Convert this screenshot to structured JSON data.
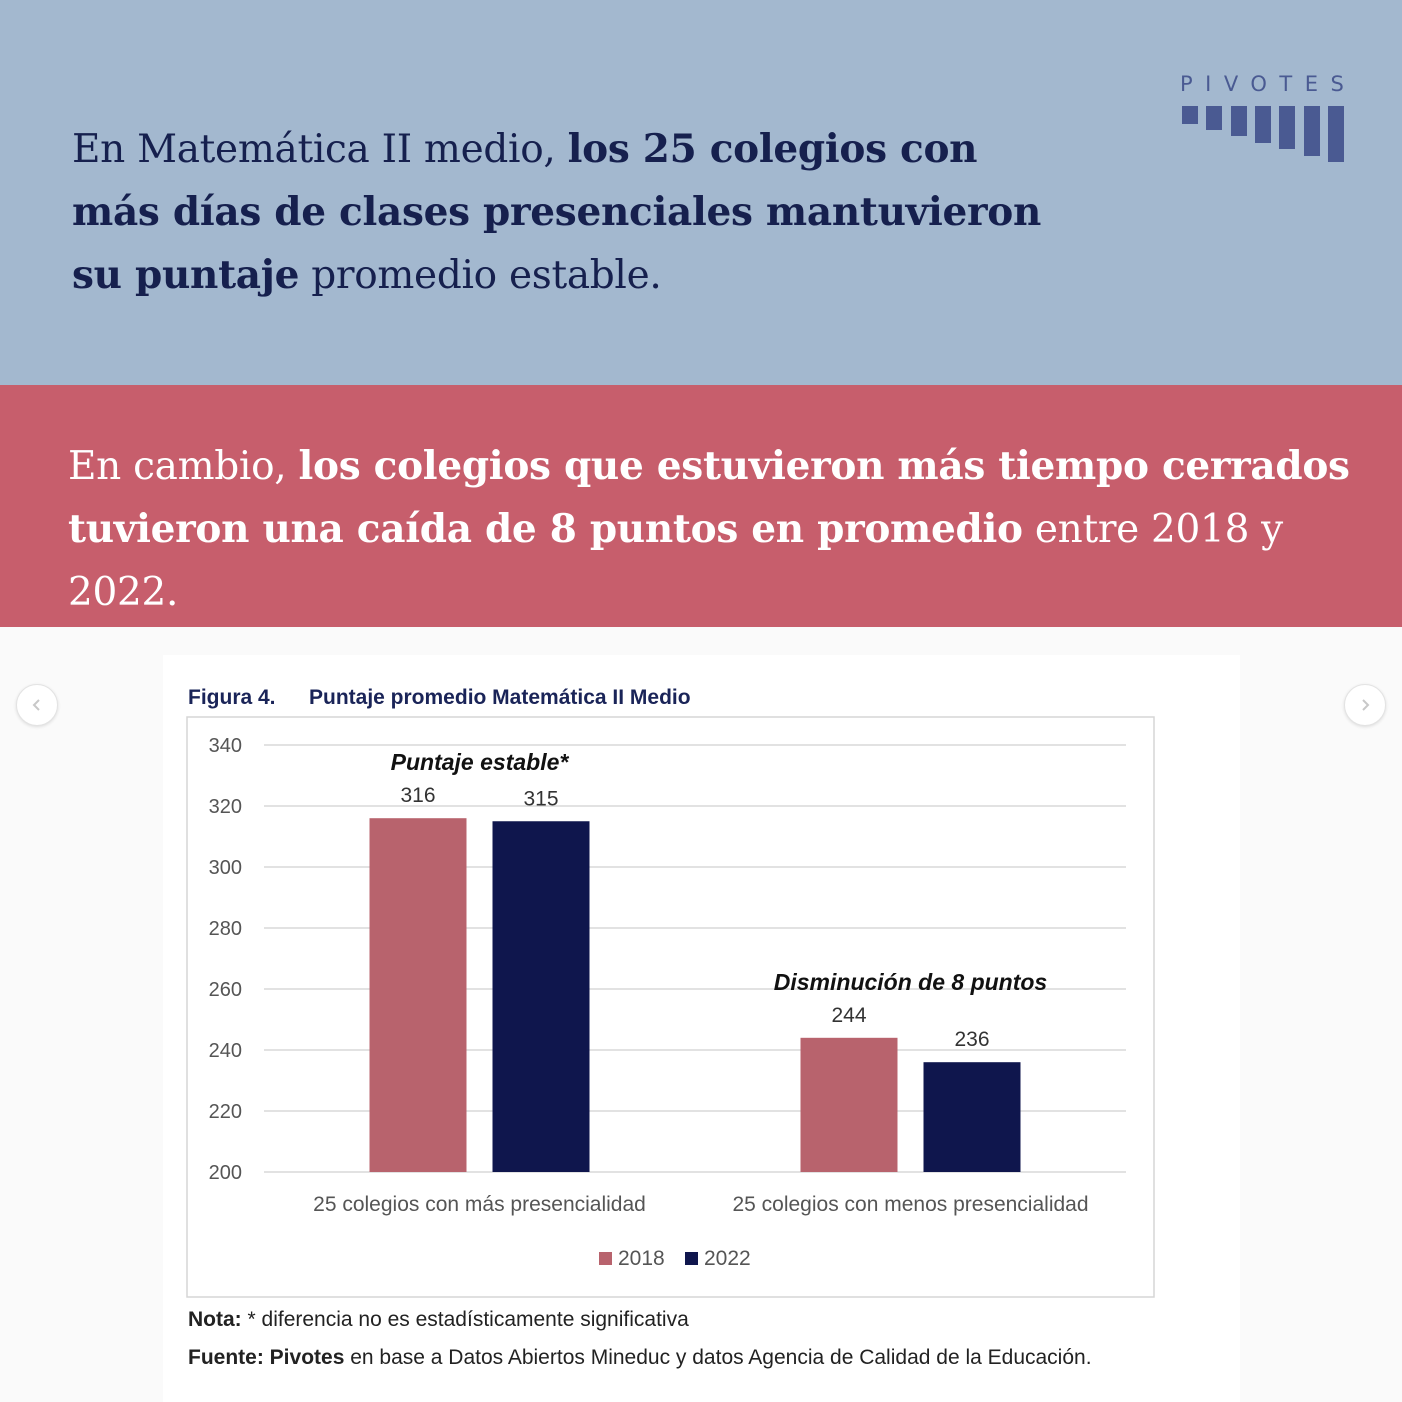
{
  "header": {
    "line1_plain": "En Matemática II medio,",
    "line1_bold": "los 25 colegios con",
    "line2_bold": "más días de clases presenciales mantuvieron",
    "line3_bold": "su puntaje",
    "line3_plain": "promedio estable."
  },
  "logo": {
    "word": "PIVOTES"
  },
  "highlight": {
    "lead": "En cambio,",
    "bold1": "los colegios que estuvieron más tiempo cerrados",
    "bold2": "tuvieron una caída de 8 puntos en promedio",
    "tail": "entre 2018 y 2022."
  },
  "colors": {
    "top_band": "#a3b8cf",
    "mid_band": "#c75e6c",
    "series_2018": "#b8636d",
    "series_2022": "#0f164d",
    "logo": "#4a5a92"
  },
  "figure": {
    "number": "Figura 4.",
    "title": "Puntaje promedio Matemática II Medio",
    "note_label": "Nota:",
    "note_text": "* diferencia no es estadísticamente significativa",
    "source_label": "Fuente:",
    "source_bold": "Pivotes",
    "source_text": "en base a Datos Abiertos Mineduc y datos Agencia de Calidad de la Educación."
  },
  "chart_data": {
    "type": "bar",
    "categories": [
      "25 colegios con más presencialidad",
      "25 colegios con menos presencialidad"
    ],
    "series": [
      {
        "name": "2018",
        "values": [
          316,
          244
        ]
      },
      {
        "name": "2022",
        "values": [
          315,
          236
        ]
      }
    ],
    "annotations": [
      "Puntaje estable*",
      "Disminución de 8 puntos"
    ],
    "ylim": [
      200,
      340
    ],
    "yticks": [
      200,
      220,
      240,
      260,
      280,
      300,
      320,
      340
    ],
    "grid": true,
    "legend": "bottom"
  }
}
